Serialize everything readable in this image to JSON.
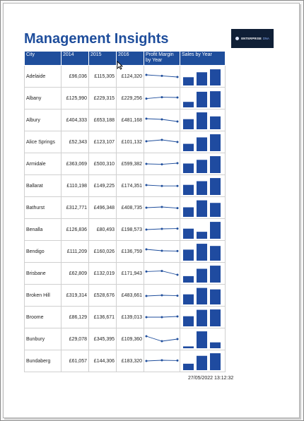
{
  "report": {
    "title": "Management Insights",
    "timestamp": "27/05/2022 13:12:32",
    "logo": {
      "name": "ENTERPRISE",
      "suffix": "DNA"
    }
  },
  "table": {
    "headers": {
      "city": "City",
      "y2014": "2014",
      "y2015": "2015",
      "y2016": "2016",
      "margin": "Profit Margin by Year",
      "sales": "Sales by Year"
    },
    "rows": [
      {
        "city": "Adelaide",
        "y2014": "£96,036",
        "y2015": "£115,305",
        "y2016": "£124,320",
        "margin": [
          0.55,
          0.48,
          0.4
        ],
        "sales": [
          0.45,
          0.72,
          0.88
        ]
      },
      {
        "city": "Albany",
        "y2014": "£125,990",
        "y2015": "£229,315",
        "y2016": "£229,256",
        "margin": [
          0.42,
          0.52,
          0.5
        ],
        "sales": [
          0.3,
          0.85,
          0.88
        ]
      },
      {
        "city": "Albury",
        "y2014": "£404,333",
        "y2015": "£653,188",
        "y2016": "£481,168",
        "margin": [
          0.55,
          0.5,
          0.35
        ],
        "sales": [
          0.55,
          0.92,
          0.7
        ]
      },
      {
        "city": "Alice Springs",
        "y2014": "£52,343",
        "y2015": "£123,107",
        "y2016": "£101,132",
        "margin": [
          0.5,
          0.6,
          0.45
        ],
        "sales": [
          0.4,
          0.75,
          0.92
        ]
      },
      {
        "city": "Armidale",
        "y2014": "£363,069",
        "y2015": "£500,310",
        "y2016": "£599,382",
        "margin": [
          0.45,
          0.42,
          0.5
        ],
        "sales": [
          0.52,
          0.72,
          0.92
        ]
      },
      {
        "city": "Ballarat",
        "y2014": "£110,198",
        "y2015": "£149,225",
        "y2016": "£174,351",
        "margin": [
          0.5,
          0.44,
          0.44
        ],
        "sales": [
          0.55,
          0.75,
          0.92
        ]
      },
      {
        "city": "Bathurst",
        "y2014": "£312,771",
        "y2015": "£496,348",
        "y2016": "£408,735",
        "margin": [
          0.45,
          0.5,
          0.42
        ],
        "sales": [
          0.52,
          0.9,
          0.76
        ]
      },
      {
        "city": "Benalla",
        "y2014": "£126,836",
        "y2015": "£80,493",
        "y2016": "£198,573",
        "margin": [
          0.45,
          0.5,
          0.52
        ],
        "sales": [
          0.55,
          0.38,
          0.92
        ]
      },
      {
        "city": "Bendigo",
        "y2014": "£111,209",
        "y2015": "£160,026",
        "y2016": "£136,759",
        "margin": [
          0.6,
          0.5,
          0.48
        ],
        "sales": [
          0.6,
          0.92,
          0.8
        ]
      },
      {
        "city": "Brisbane",
        "y2014": "£62,809",
        "y2015": "£132,019",
        "y2016": "£171,943",
        "margin": [
          0.58,
          0.62,
          0.35
        ],
        "sales": [
          0.35,
          0.75,
          0.92
        ]
      },
      {
        "city": "Broken Hill",
        "y2014": "£319,314",
        "y2015": "£528,676",
        "y2016": "£483,661",
        "margin": [
          0.4,
          0.45,
          0.42
        ],
        "sales": [
          0.55,
          0.9,
          0.82
        ]
      },
      {
        "city": "Broome",
        "y2014": "£86,129",
        "y2015": "£136,671",
        "y2016": "£139,013",
        "margin": [
          0.45,
          0.45,
          0.5
        ],
        "sales": [
          0.55,
          0.9,
          0.92
        ]
      },
      {
        "city": "Bunbury",
        "y2014": "£29,078",
        "y2015": "£345,395",
        "y2016": "£109,360",
        "margin": [
          0.65,
          0.3,
          0.45
        ],
        "sales": [
          0.1,
          0.92,
          0.32
        ]
      },
      {
        "city": "Bundaberg",
        "y2014": "£61,057",
        "y2015": "£144,306",
        "y2016": "£183,320",
        "margin": [
          0.45,
          0.5,
          0.48
        ],
        "sales": [
          0.35,
          0.78,
          0.92
        ]
      }
    ]
  },
  "colors": {
    "accent": "#1f4e9c",
    "bar": "#1f4ba0",
    "line": "#1f4e9c"
  }
}
